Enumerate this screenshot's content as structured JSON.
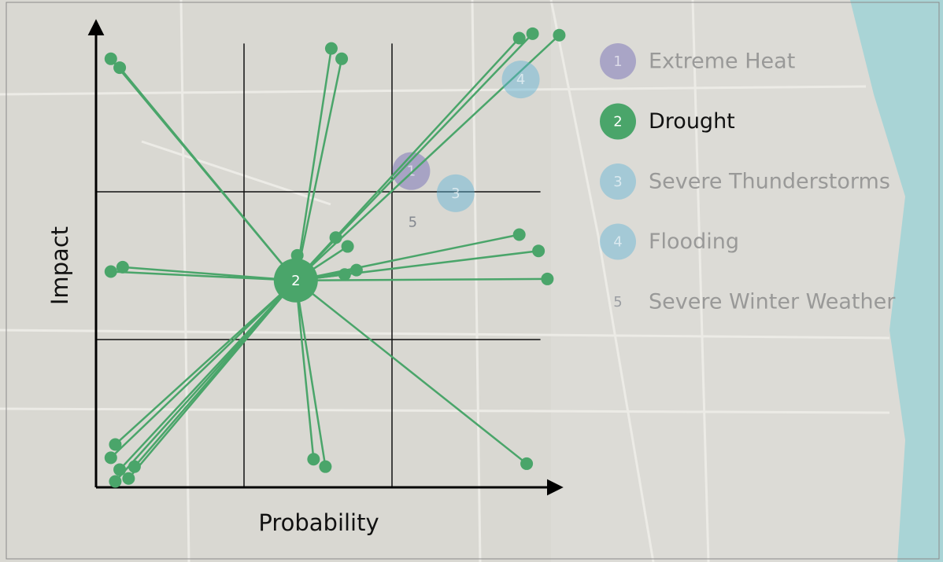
{
  "chart_data": {
    "type": "scatter",
    "xlabel": "Probability",
    "ylabel": "Impact",
    "xlim": [
      0,
      3.2
    ],
    "ylim": [
      0,
      3.2
    ],
    "xticks": [
      1,
      2
    ],
    "yticks": [
      1,
      2
    ],
    "grid": true,
    "series": [
      {
        "name": "Extreme Heat",
        "label": "1",
        "color": "#6a63b3",
        "opacity": 0.45,
        "x": [
          2.13
        ],
        "values": [
          2.14
        ]
      },
      {
        "name": "Drought",
        "label": "2",
        "color": "#4aa56a",
        "opacity": 1,
        "x": [
          1.35
        ],
        "values": [
          1.4
        ],
        "votes": {
          "x": [
            0.1,
            0.16,
            1.59,
            1.66,
            2.86,
            2.95,
            3.13,
            2.86,
            2.99,
            3.05,
            0.1,
            0.18,
            1.62,
            1.7,
            1.76,
            1.68,
            1.36,
            0.13,
            0.1,
            0.16,
            0.13,
            0.22,
            0.26,
            1.47,
            1.55,
            2.91
          ],
          "values": [
            2.9,
            2.84,
            2.97,
            2.9,
            3.04,
            3.07,
            3.06,
            1.71,
            1.6,
            1.41,
            1.46,
            1.49,
            1.69,
            1.63,
            1.47,
            1.44,
            1.57,
            0.29,
            0.2,
            0.12,
            0.04,
            0.06,
            0.14,
            0.19,
            0.14,
            0.16
          ]
        }
      },
      {
        "name": "Severe Thunderstorms",
        "label": "3",
        "color": "#5fb3d6",
        "opacity": 0.45,
        "x": [
          2.43
        ],
        "values": [
          1.99
        ]
      },
      {
        "name": "Flooding",
        "label": "4",
        "color": "#5fb3d6",
        "opacity": 0.45,
        "x": [
          2.87
        ],
        "values": [
          2.76
        ]
      },
      {
        "name": "Severe Winter Weather",
        "label": "5",
        "color": "#7a8088",
        "opacity": 0.45,
        "marker": "text",
        "x": [
          2.14
        ],
        "values": [
          1.79
        ]
      }
    ]
  }
}
